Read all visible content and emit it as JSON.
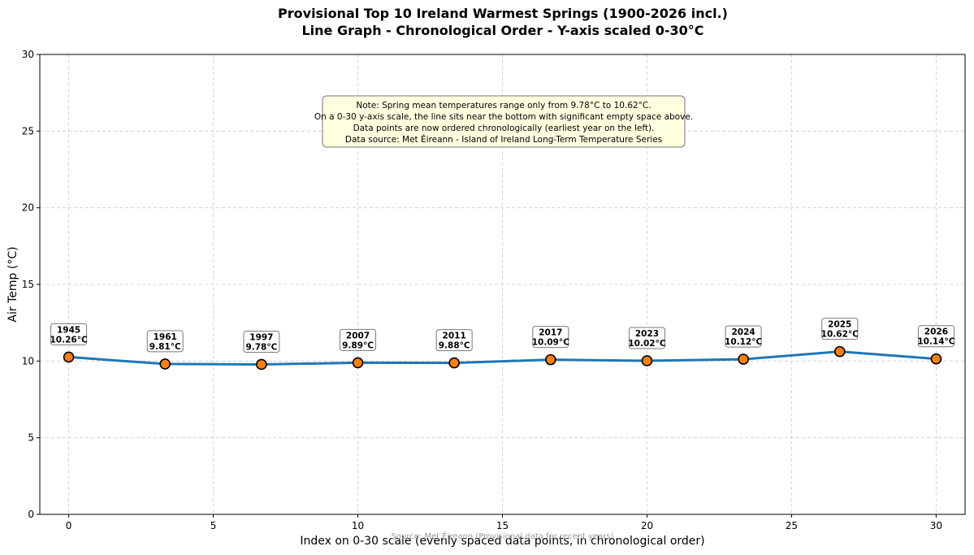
{
  "chart_data": {
    "type": "line",
    "title_lines": [
      "Provisional Top 10 Ireland Warmest Springs (1900-2026 incl.)",
      "Line Graph - Chronological Order - Y-axis scaled 0-30°C"
    ],
    "xlabel": "Index on 0-30 scale (evenly spaced data points, in chronological order)",
    "ylabel": "Air Temp (°C)",
    "xlim": [
      -1,
      31
    ],
    "ylim": [
      0,
      30
    ],
    "xticks": [
      0,
      5,
      10,
      15,
      20,
      25,
      30
    ],
    "yticks": [
      0,
      5,
      10,
      15,
      20,
      25,
      30
    ],
    "grid": true,
    "points": [
      {
        "x": 0,
        "y": 10.26,
        "year": "1945",
        "label": "10.26°C"
      },
      {
        "x": 3.333,
        "y": 9.81,
        "year": "1961",
        "label": "9.81°C"
      },
      {
        "x": 6.667,
        "y": 9.78,
        "year": "1997",
        "label": "9.78°C"
      },
      {
        "x": 10,
        "y": 9.89,
        "year": "2007",
        "label": "9.89°C"
      },
      {
        "x": 13.333,
        "y": 9.88,
        "year": "2011",
        "label": "9.88°C"
      },
      {
        "x": 16.667,
        "y": 10.09,
        "year": "2017",
        "label": "10.09°C"
      },
      {
        "x": 20,
        "y": 10.02,
        "year": "2023",
        "label": "10.02°C"
      },
      {
        "x": 23.333,
        "y": 10.12,
        "year": "2024",
        "label": "10.12°C"
      },
      {
        "x": 26.667,
        "y": 10.62,
        "year": "2025",
        "label": "10.62°C"
      },
      {
        "x": 30,
        "y": 10.14,
        "year": "2026",
        "label": "10.14°C"
      }
    ],
    "note_lines": [
      "Note: Spring mean temperatures range only from 9.78°C to 10.62°C.",
      "On a 0-30 y-axis scale, the line sits near the bottom with significant empty space above.",
      "Data points are now ordered chronologically (earliest year on the left).",
      "Data source: Met Éireann - Island of Ireland Long-Term Temperature Series"
    ],
    "source_text": "Source: Met Éireann (Provisional data for recent years)",
    "colors": {
      "line": "#1f77b4",
      "marker_fill": "#ff7f0e",
      "marker_edge": "#000000",
      "note_bg": "#ffffe0",
      "grid": "#cccccc"
    }
  }
}
